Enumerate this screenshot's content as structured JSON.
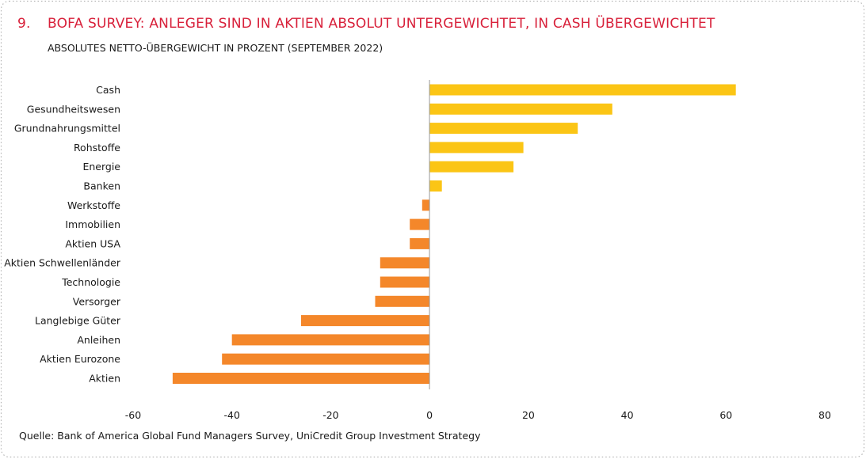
{
  "header": {
    "number": "9.",
    "title": "BOFA SURVEY: ANLEGER SIND IN AKTIEN ABSOLUT UNTERGEWICHTET, IN CASH ÜBERGEWICHTET",
    "subtitle": "ABSOLUTES NETTO-ÜBERGEWICHT IN PROZENT (SEPTEMBER 2022)"
  },
  "footer": {
    "source": "Quelle: Bank of America Global Fund Managers Survey, UniCredit Group Investment Strategy"
  },
  "colors": {
    "positive": "#fbc515",
    "negative": "#f4872a",
    "title": "#d8203a",
    "axis": "#9a9a9a",
    "border": "#b5b5b5"
  },
  "chart_data": {
    "type": "bar",
    "orientation": "horizontal",
    "title": "BOFA SURVEY: ANLEGER SIND IN AKTIEN ABSOLUT UNTERGEWICHTET, IN CASH ÜBERGEWICHTET",
    "subtitle": "ABSOLUTES NETTO-ÜBERGEWICHT IN PROZENT (SEPTEMBER 2022)",
    "xlabel": "",
    "ylabel": "",
    "categories": [
      "Cash",
      "Gesundheitswesen",
      "Grundnahrungsmittel",
      "Rohstoffe",
      "Energie",
      "Banken",
      "Werkstoffe",
      "Immobilien",
      "Aktien USA",
      "Aktien Schwellenländer",
      "Technologie",
      "Versorger",
      "Langlebige Güter",
      "Anleihen",
      "Aktien Eurozone",
      "Aktien"
    ],
    "values": [
      62,
      37,
      30,
      19,
      17,
      2.5,
      -1.5,
      -4,
      -4,
      -10,
      -10,
      -11,
      -26,
      -40,
      -42,
      -52
    ],
    "xlim": [
      -60,
      80
    ],
    "xticks": [
      -60,
      -40,
      -20,
      0,
      20,
      40,
      60,
      80
    ],
    "xtick_labels": [
      "-60",
      "-40",
      "-20",
      "0",
      "20",
      "40",
      "60",
      "80"
    ],
    "grid": false,
    "legend": "none"
  }
}
